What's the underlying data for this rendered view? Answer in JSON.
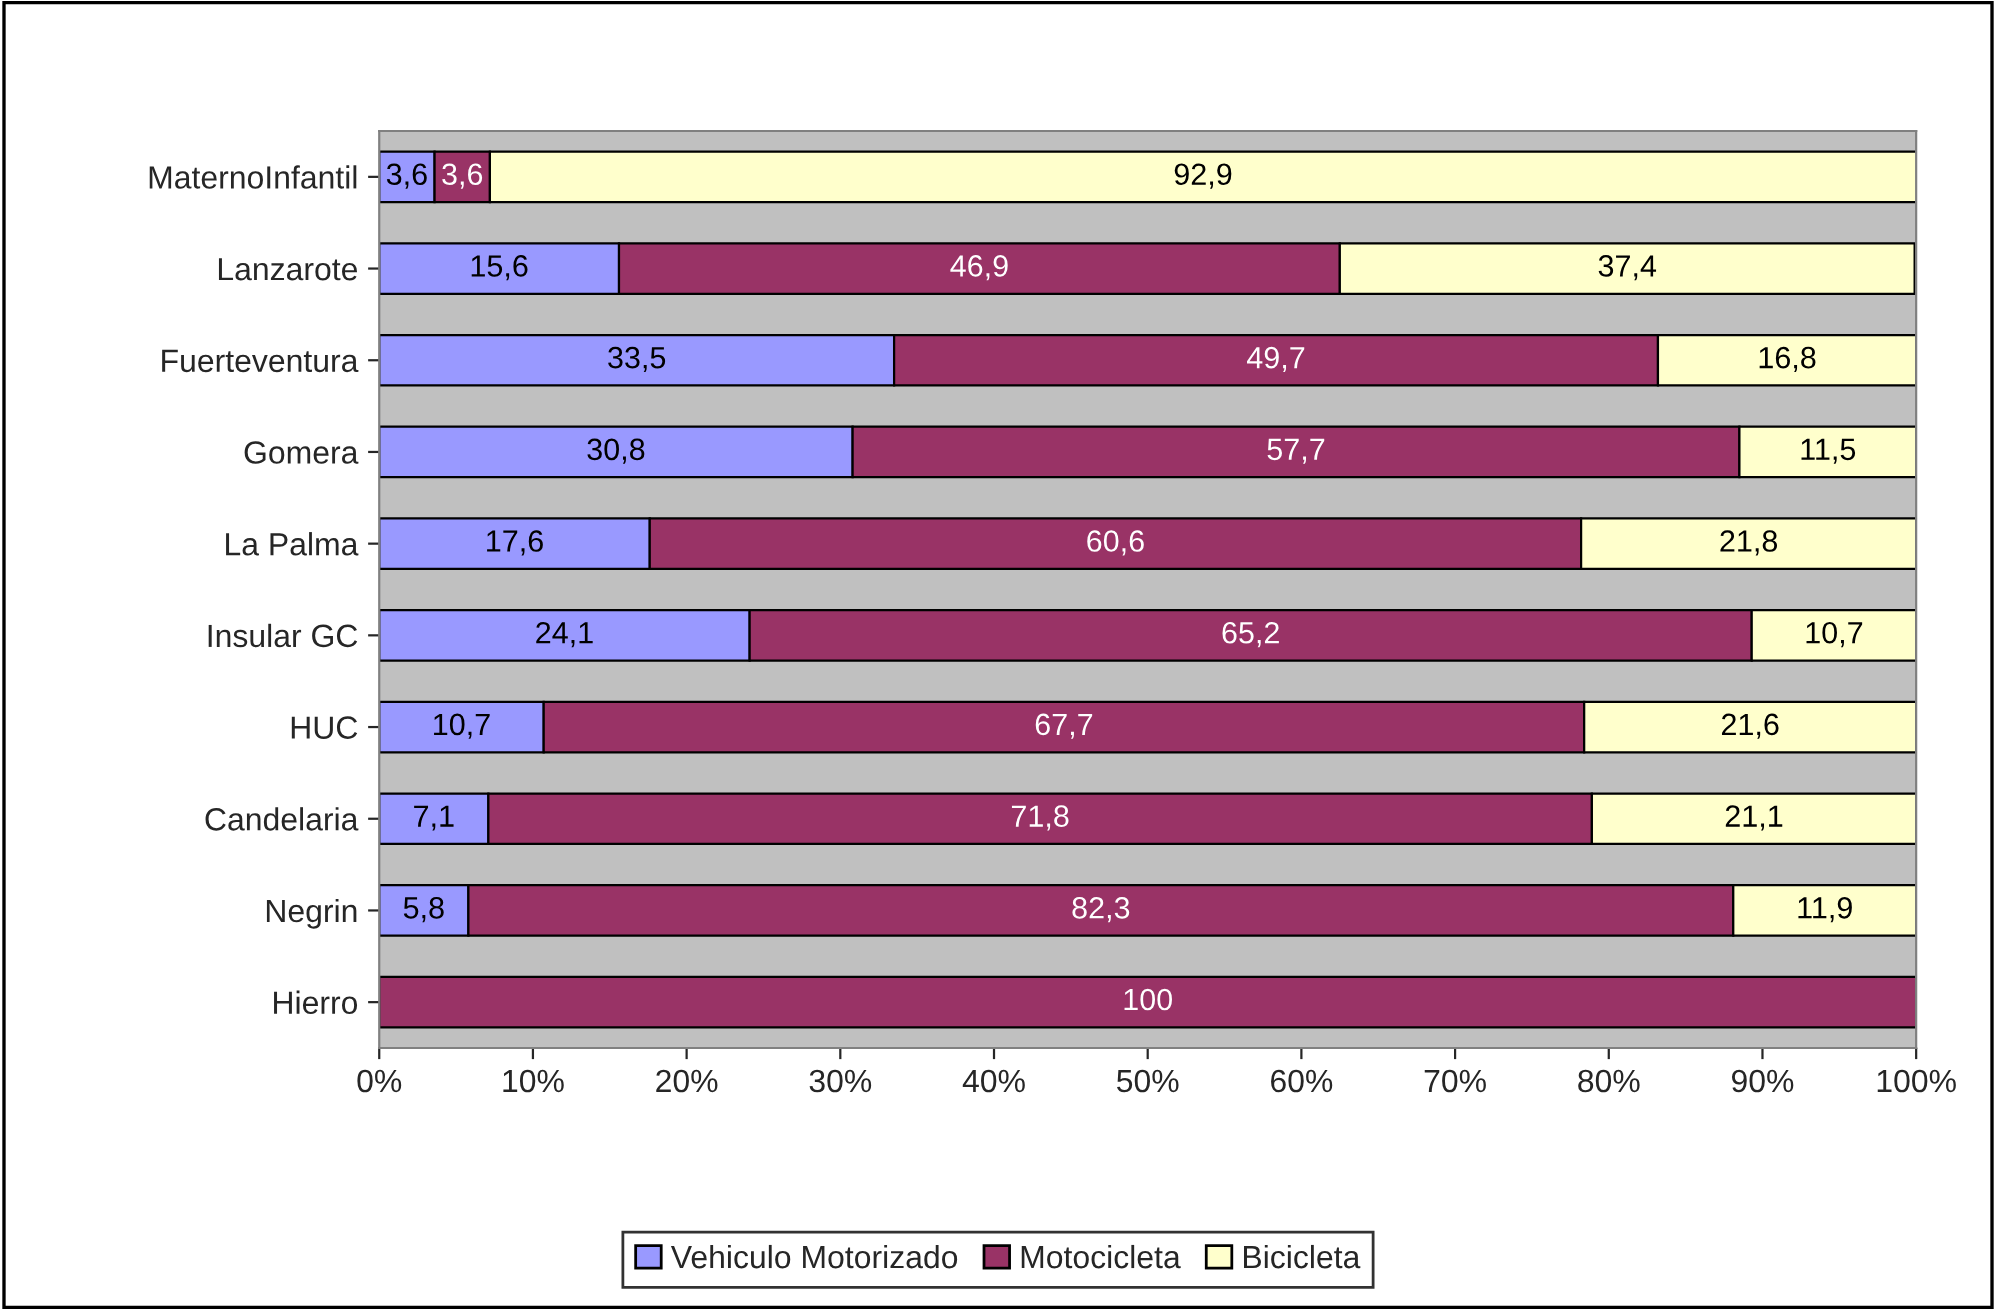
{
  "chart_data": {
    "type": "bar",
    "orientation": "horizontal",
    "stacked": true,
    "categories": [
      "MaternoInfantil",
      "Lanzarote",
      "Fuerteventura",
      "Gomera",
      "La Palma",
      "Insular GC",
      "HUC",
      "Candelaria",
      "Negrin",
      "Hierro"
    ],
    "series": [
      {
        "name": "Vehiculo Motorizado",
        "color": "#9999ff",
        "values": [
          3.6,
          15.6,
          33.5,
          30.8,
          17.6,
          24.1,
          10.7,
          7.1,
          5.8,
          0
        ],
        "value_labels": [
          "3,6",
          "15,6",
          "33,5",
          "30,8",
          "17,6",
          "24,1",
          "10,7",
          "7,1",
          "5,8",
          null
        ]
      },
      {
        "name": "Motocicleta",
        "color": "#993366",
        "values": [
          3.6,
          46.9,
          49.7,
          57.7,
          60.6,
          65.2,
          67.7,
          71.8,
          82.3,
          100
        ],
        "value_labels": [
          "3,6",
          "46,9",
          "49,7",
          "57,7",
          "60,6",
          "65,2",
          "67,7",
          "71,8",
          "82,3",
          "100"
        ]
      },
      {
        "name": "Bicicleta",
        "color": "#ffffcc",
        "values": [
          92.9,
          37.4,
          16.8,
          11.5,
          21.8,
          10.7,
          21.6,
          21.1,
          11.9,
          0
        ],
        "value_labels": [
          "92,9",
          "37,4",
          "16,8",
          "11,5",
          "21,8",
          "10,7",
          "21,6",
          "21,1",
          "11,9",
          null
        ]
      }
    ],
    "xlim": [
      0,
      100
    ],
    "xticks": [
      {
        "value": 0,
        "label": "0%"
      },
      {
        "value": 10,
        "label": "10%"
      },
      {
        "value": 20,
        "label": "20%"
      },
      {
        "value": 30,
        "label": "30%"
      },
      {
        "value": 40,
        "label": "40%"
      },
      {
        "value": 50,
        "label": "50%"
      },
      {
        "value": 60,
        "label": "60%"
      },
      {
        "value": 70,
        "label": "70%"
      },
      {
        "value": 80,
        "label": "80%"
      },
      {
        "value": 90,
        "label": "90%"
      },
      {
        "value": 100,
        "label": "100%"
      }
    ],
    "grid": false,
    "legend": "bottom"
  }
}
